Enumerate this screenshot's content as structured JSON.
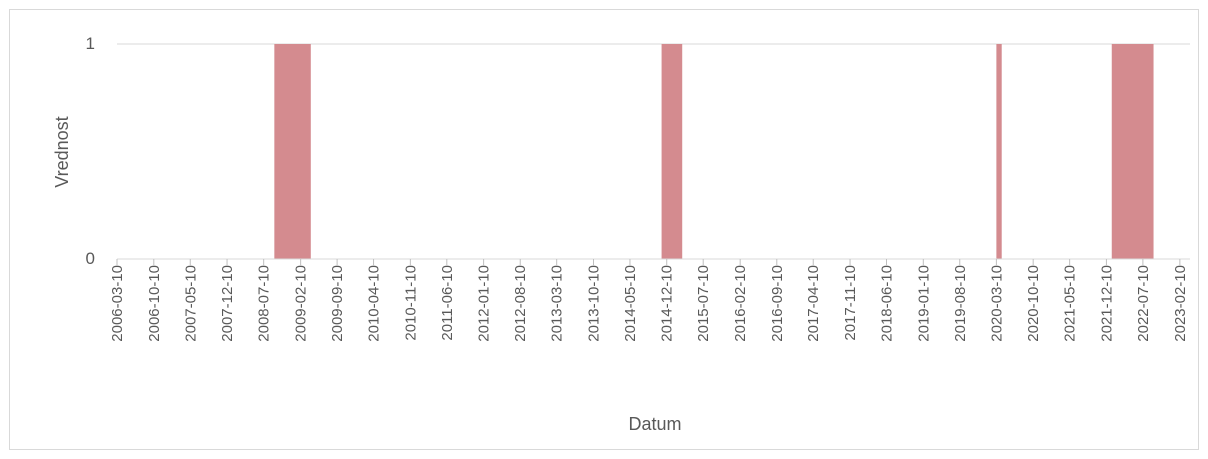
{
  "chart_data": {
    "type": "area",
    "step": "post",
    "xlabel": "Datum",
    "ylabel": "Vrednost",
    "x": [
      "2006-03-10",
      "2008-09-10",
      "2009-04-10",
      "2014-11-10",
      "2015-03-10",
      "2020-03-10",
      "2020-04-10",
      "2022-01-10",
      "2022-09-10"
    ],
    "values": [
      0,
      1,
      0,
      1,
      0,
      1,
      0,
      1,
      0
    ],
    "color": "#d48b8f",
    "xlim": [
      "2006-03-10",
      "2023-04-10"
    ],
    "xticks": [
      "2006-03-10",
      "2006-10-10",
      "2007-05-10",
      "2007-12-10",
      "2008-07-10",
      "2009-02-10",
      "2009-09-10",
      "2010-04-10",
      "2010-11-10",
      "2011-06-10",
      "2012-01-10",
      "2012-08-10",
      "2013-03-10",
      "2013-10-10",
      "2014-05-10",
      "2014-12-10",
      "2015-07-10",
      "2016-02-10",
      "2016-09-10",
      "2017-04-10",
      "2017-11-10",
      "2018-06-10",
      "2019-01-10",
      "2019-08-10",
      "2020-03-10",
      "2020-10-10",
      "2021-05-10",
      "2021-12-10",
      "2022-07-10",
      "2023-02-10"
    ],
    "ylim": [
      0,
      1
    ],
    "yticks": [
      0,
      1
    ],
    "grid": true
  }
}
